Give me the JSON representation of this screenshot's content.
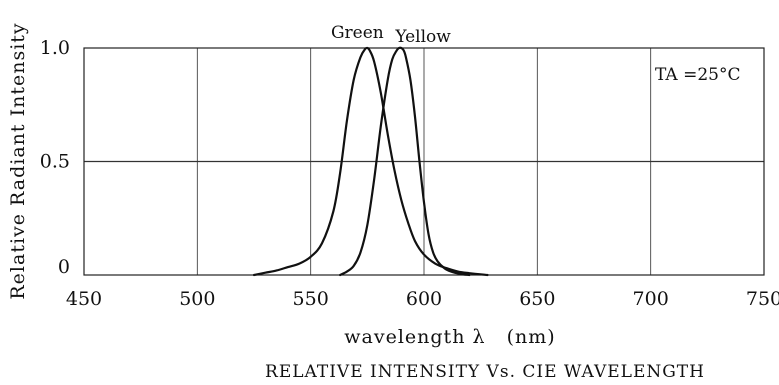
{
  "chart_data": {
    "type": "line",
    "title": "RELATIVE INTENSITY Vs. CIE WAVELENGTH",
    "xlabel": "wavelength λ   (nm)",
    "ylabel": "Relative Radiant Intensity",
    "xlim": [
      450,
      750
    ],
    "ylim": [
      0,
      1.0
    ],
    "x_ticks": [
      450,
      500,
      550,
      600,
      650,
      700,
      750
    ],
    "x_tick_labels": [
      "450",
      "500",
      "550",
      "600",
      "650",
      "700",
      "750"
    ],
    "y_ticks": [
      0,
      0.5,
      1.0
    ],
    "y_tick_labels": [
      "0",
      "0.5",
      "1.0"
    ],
    "grid": true,
    "annotation": "TA =25°C",
    "series": [
      {
        "name": "Green",
        "x": [
          525,
          530,
          535,
          540,
          545,
          550,
          555,
          560,
          563,
          566,
          569,
          572,
          574,
          575,
          576,
          578,
          581,
          584,
          587,
          590,
          593,
          596,
          600,
          605,
          610,
          615,
          620,
          628
        ],
        "y": [
          0.0,
          0.01,
          0.02,
          0.035,
          0.05,
          0.08,
          0.14,
          0.28,
          0.45,
          0.68,
          0.86,
          0.96,
          0.995,
          1.0,
          0.99,
          0.94,
          0.8,
          0.62,
          0.46,
          0.33,
          0.23,
          0.15,
          0.09,
          0.05,
          0.03,
          0.015,
          0.008,
          0.0
        ]
      },
      {
        "name": "Yellow",
        "x": [
          563,
          566,
          569,
          572,
          575,
          578,
          581,
          584,
          586,
          588,
          589,
          590,
          591,
          592,
          594,
          596,
          598,
          600,
          602,
          604,
          606,
          609,
          612,
          616,
          620
        ],
        "y": [
          0.0,
          0.015,
          0.04,
          0.1,
          0.22,
          0.42,
          0.66,
          0.86,
          0.95,
          0.99,
          1.0,
          1.0,
          0.99,
          0.96,
          0.86,
          0.7,
          0.5,
          0.32,
          0.18,
          0.1,
          0.06,
          0.03,
          0.015,
          0.005,
          0.0
        ]
      }
    ]
  }
}
